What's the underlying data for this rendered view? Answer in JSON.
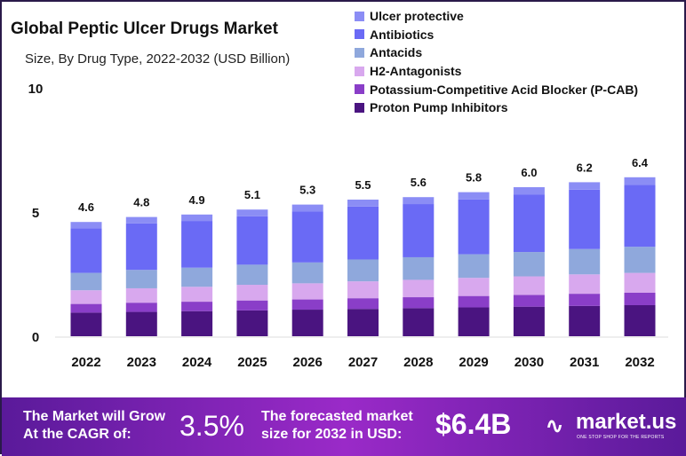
{
  "chart_data": {
    "type": "bar",
    "stacked": true,
    "title": "Global Peptic Ulcer Drugs Market",
    "subtitle": "Size, By Drug Type, 2022-2032 (USD Billion)",
    "categories": [
      "2022",
      "2023",
      "2024",
      "2025",
      "2026",
      "2027",
      "2028",
      "2029",
      "2030",
      "2031",
      "2032"
    ],
    "totals": [
      "4.6",
      "4.8",
      "4.9",
      "5.1",
      "5.3",
      "5.5",
      "5.6",
      "5.8",
      "6.0",
      "6.2",
      "6.4"
    ],
    "ylim": [
      0,
      10
    ],
    "yticks": [
      "0",
      "5",
      "10"
    ],
    "legend_position": "top-right",
    "series": [
      {
        "name": "Proton Pump Inhibitors",
        "color": "#4a1480",
        "values": [
          0.95,
          0.98,
          1.01,
          1.04,
          1.07,
          1.1,
          1.13,
          1.16,
          1.19,
          1.22,
          1.25
        ]
      },
      {
        "name": "Potassium-Competitive Acid Blocker (P-CAB)",
        "color": "#8a3ec8",
        "values": [
          0.35,
          0.37,
          0.38,
          0.4,
          0.41,
          0.43,
          0.44,
          0.46,
          0.47,
          0.49,
          0.5
        ]
      },
      {
        "name": "H2-Antagonists",
        "color": "#d8a8ee",
        "values": [
          0.55,
          0.58,
          0.6,
          0.63,
          0.65,
          0.68,
          0.7,
          0.73,
          0.75,
          0.78,
          0.8
        ]
      },
      {
        "name": "Antacids",
        "color": "#8fa8dc",
        "values": [
          0.7,
          0.74,
          0.77,
          0.81,
          0.84,
          0.88,
          0.91,
          0.95,
          0.98,
          1.02,
          1.05
        ]
      },
      {
        "name": "Antibiotics",
        "color": "#6a6af5",
        "values": [
          1.8,
          1.87,
          1.88,
          1.95,
          2.06,
          2.13,
          2.14,
          2.21,
          2.32,
          2.39,
          2.5
        ]
      },
      {
        "name": "Ulcer protective",
        "color": "#8b8df5",
        "values": [
          0.25,
          0.26,
          0.26,
          0.27,
          0.27,
          0.28,
          0.28,
          0.29,
          0.29,
          0.3,
          0.3
        ]
      }
    ]
  },
  "footer": {
    "cagr_label_1": "The Market will Grow",
    "cagr_label_2": "At the CAGR of:",
    "cagr_value": "3.5%",
    "forecast_label_1": "The forecasted market",
    "forecast_label_2": "size for 2032 in USD:",
    "forecast_value": "$6.4B",
    "brand": "market.us",
    "brand_tagline": "ONE STOP SHOP FOR THE REPORTS"
  }
}
